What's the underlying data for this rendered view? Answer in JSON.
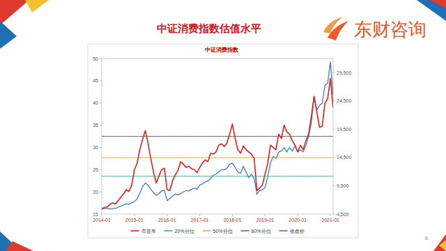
{
  "slide": {
    "title": "中证消费指数估值水平",
    "logo": "东财咨询",
    "page_number": 6
  },
  "chart_data": {
    "type": "line",
    "title": "中证消费指数",
    "categories": [
      "2014-01",
      null,
      null,
      null,
      null,
      null,
      null,
      null,
      null,
      null,
      null,
      null,
      "2015-01",
      null,
      null,
      null,
      null,
      null,
      null,
      null,
      null,
      null,
      null,
      null,
      "2016-01",
      null,
      null,
      null,
      null,
      null,
      null,
      null,
      null,
      null,
      null,
      null,
      "2017-01",
      null,
      null,
      null,
      null,
      null,
      null,
      null,
      null,
      null,
      null,
      null,
      "2018-01",
      null,
      null,
      null,
      null,
      null,
      null,
      null,
      null,
      null,
      null,
      null,
      "2019-01",
      null,
      null,
      null,
      null,
      null,
      null,
      null,
      null,
      null,
      null,
      null,
      "2020-01",
      null,
      null,
      null,
      null,
      null,
      null,
      null,
      null,
      null,
      null,
      null,
      "2021-01",
      null
    ],
    "series": [
      {
        "name": "市盈率",
        "color": "#e0201c",
        "line_style": "solid",
        "values": [
          16.2,
          16.5,
          16.6,
          17.2,
          17.5,
          17.3,
          18.0,
          18.8,
          19.5,
          20.5,
          20.1,
          21.5,
          25.0,
          26.5,
          29.5,
          31.8,
          33.8,
          31.0,
          27.5,
          24.5,
          22.0,
          23.5,
          25.0,
          25.3,
          20.5,
          20.3,
          22.5,
          23.8,
          24.8,
          26.8,
          26.2,
          25.5,
          25.8,
          25.2,
          25.0,
          24.3,
          25.5,
          26.5,
          27.2,
          26.8,
          28.7,
          28.5,
          29.0,
          30.5,
          30.8,
          30.2,
          31.0,
          33.0,
          35.3,
          32.0,
          29.5,
          28.7,
          30.3,
          29.5,
          29.0,
          28.5,
          27.5,
          20.3,
          20.8,
          21.5,
          24.0,
          26.5,
          30.5,
          30.0,
          29.5,
          33.0,
          32.0,
          35.0,
          33.5,
          33.0,
          31.5,
          30.5,
          29.0,
          30.5,
          29.5,
          31.5,
          33.0,
          37.0,
          41.5,
          38.0,
          34.5,
          34.8,
          40.0,
          41.0,
          45.5,
          39.0
        ]
      },
      {
        "name": "20%分位",
        "color": "#46a89a",
        "line_style": "solid",
        "values": [
          23.5,
          23.5,
          23.5,
          23.5,
          23.5,
          23.5,
          23.5,
          23.5,
          23.5,
          23.5,
          23.5,
          23.5,
          23.5,
          23.5,
          23.5,
          23.5,
          23.5,
          23.5,
          23.5,
          23.5,
          23.5,
          23.5,
          23.5,
          23.5,
          23.5,
          23.5,
          23.5,
          23.5,
          23.5,
          23.5,
          23.5,
          23.5,
          23.5,
          23.5,
          23.5,
          23.5,
          23.5,
          23.5,
          23.5,
          23.5,
          23.5,
          23.5,
          23.5,
          23.5,
          23.5,
          23.5,
          23.5,
          23.5,
          23.5,
          23.5,
          23.5,
          23.5,
          23.5,
          23.5,
          23.5,
          23.5,
          23.5,
          23.5,
          23.5,
          23.5,
          23.5,
          23.5,
          23.5,
          23.5,
          23.5,
          23.5,
          23.5,
          23.5,
          23.5,
          23.5,
          23.5,
          23.5,
          23.5,
          23.5,
          23.5,
          23.5,
          23.5,
          23.5,
          23.5,
          23.5,
          23.5,
          23.5,
          23.5,
          23.5,
          23.5,
          23.5
        ]
      },
      {
        "name": "50%分位",
        "color": "#f5a857",
        "line_style": "solid",
        "values": [
          27.7,
          27.7,
          27.7,
          27.7,
          27.7,
          27.7,
          27.7,
          27.7,
          27.7,
          27.7,
          27.7,
          27.7,
          27.7,
          27.7,
          27.7,
          27.7,
          27.7,
          27.7,
          27.7,
          27.7,
          27.7,
          27.7,
          27.7,
          27.7,
          27.7,
          27.7,
          27.7,
          27.7,
          27.7,
          27.7,
          27.7,
          27.7,
          27.7,
          27.7,
          27.7,
          27.7,
          27.7,
          27.7,
          27.7,
          27.7,
          27.7,
          27.7,
          27.7,
          27.7,
          27.7,
          27.7,
          27.7,
          27.7,
          27.7,
          27.7,
          27.7,
          27.7,
          27.7,
          27.7,
          27.7,
          27.7,
          27.7,
          27.7,
          27.7,
          27.7,
          27.7,
          27.7,
          27.7,
          27.7,
          27.7,
          27.7,
          27.7,
          27.7,
          27.7,
          27.7,
          27.7,
          27.7,
          27.7,
          27.7,
          27.7,
          27.7,
          27.7,
          27.7,
          27.7,
          27.7,
          27.7,
          27.7,
          27.7,
          27.7,
          27.7,
          27.7
        ]
      },
      {
        "name": "80%分位",
        "color": "#7c5a9a",
        "line_style": "solid",
        "values": [
          32.5,
          32.5,
          32.5,
          32.5,
          32.5,
          32.5,
          32.5,
          32.5,
          32.5,
          32.5,
          32.5,
          32.5,
          32.5,
          32.5,
          32.5,
          32.5,
          32.5,
          32.5,
          32.5,
          32.5,
          32.5,
          32.5,
          32.5,
          32.5,
          32.5,
          32.5,
          32.5,
          32.5,
          32.5,
          32.5,
          32.5,
          32.5,
          32.5,
          32.5,
          32.5,
          32.5,
          32.5,
          32.5,
          32.5,
          32.5,
          32.5,
          32.5,
          32.5,
          32.5,
          32.5,
          32.5,
          32.5,
          32.5,
          32.5,
          32.5,
          32.5,
          32.5,
          32.5,
          32.5,
          32.5,
          32.5,
          32.5,
          32.5,
          32.5,
          32.5,
          32.5,
          32.5,
          32.5,
          32.5,
          32.5,
          32.5,
          32.5,
          32.5,
          32.5,
          32.5,
          32.5,
          32.5,
          32.5,
          32.5,
          32.5,
          32.5,
          32.5,
          32.5,
          32.5,
          32.5,
          32.5,
          32.5,
          32.5,
          32.5,
          32.5,
          32.5
        ]
      },
      {
        "name": "收盘价",
        "color": "#3d7ec0",
        "line_style": "solid",
        "axis": "y2",
        "values": [
          5400,
          5450,
          5500,
          5400,
          5450,
          5500,
          5700,
          5900,
          6100,
          6300,
          6250,
          6500,
          6700,
          7200,
          8200,
          9300,
          10000,
          9600,
          8900,
          8300,
          7800,
          8100,
          8600,
          8700,
          6850,
          7250,
          7640,
          8030,
          7880,
          8120,
          8420,
          8660,
          8580,
          8890,
          9050,
          8890,
          9600,
          9830,
          10150,
          10380,
          10770,
          11400,
          11560,
          11950,
          12340,
          12340,
          12580,
          13290,
          13520,
          12740,
          11950,
          11720,
          12970,
          11950,
          10930,
          11560,
          10770,
          8030,
          8660,
          8810,
          9210,
          11170,
          13520,
          14700,
          14310,
          15480,
          15640,
          16260,
          15480,
          16260,
          15640,
          16500,
          15480,
          15870,
          15480,
          16660,
          18230,
          20580,
          25280,
          22930,
          23710,
          24110,
          27240,
          27640,
          31400,
          25680
        ]
      }
    ],
    "ylim": [
      15,
      50
    ],
    "yticks": [
      15,
      20,
      25,
      30,
      35,
      40,
      45,
      50
    ],
    "y2lim": [
      4500,
      32000
    ],
    "y2ticks": [
      {
        "value": 4500,
        "label": "4,500"
      },
      {
        "value": 9500,
        "label": "9,500"
      },
      {
        "value": 14500,
        "label": "14,500"
      },
      {
        "value": 19500,
        "label": "19,500"
      },
      {
        "value": 24500,
        "label": "24,500"
      },
      {
        "value": 29500,
        "label": "29,500"
      }
    ],
    "grid": false,
    "legend": "bottom"
  }
}
